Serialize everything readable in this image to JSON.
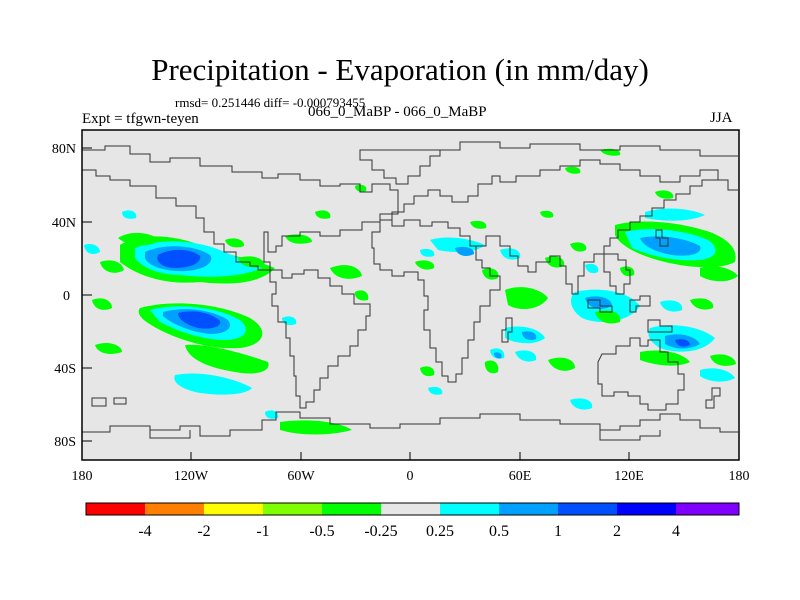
{
  "title": "Precipitation - Evaporation (in mm/day)",
  "stats": "rmsd= 0.251446 diff= -0.000793455",
  "experiment": "Expt = tfgwn-teyen",
  "cases": "066_0_MaBP - 066_0_MaBP",
  "season": "JJA",
  "lat_ticks": [
    "80N",
    "40N",
    "0",
    "40S",
    "80S"
  ],
  "lon_ticks": [
    "180",
    "120W",
    "60W",
    "0",
    "60E",
    "120E",
    "180"
  ],
  "colorbar": {
    "labels": [
      "-4",
      "-2",
      "-1",
      "-0.5",
      "-0.25",
      "0.25",
      "0.5",
      "1",
      "2",
      "4"
    ],
    "colors": [
      "#ff0000",
      "#ff8000",
      "#ffff00",
      "#80ff00",
      "#00ff00",
      "#e6e6e6",
      "#00ffff",
      "#00a0ff",
      "#0050ff",
      "#0000ff",
      "#8000ff"
    ]
  },
  "colors": {
    "background": "#e6e6e6",
    "coast": "#333333"
  }
}
